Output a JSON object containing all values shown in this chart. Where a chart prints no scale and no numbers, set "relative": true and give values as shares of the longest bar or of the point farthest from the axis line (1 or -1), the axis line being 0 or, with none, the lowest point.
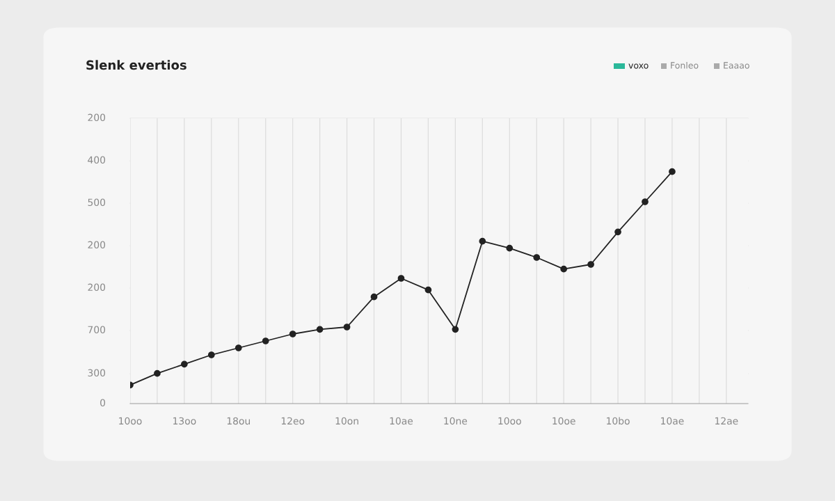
{
  "chart_data": {
    "type": "line",
    "title": "Slenk evertios",
    "relative": true,
    "annotations": [
      "voxo",
      "Fonleo",
      "Eaaao",
      "200",
      "400",
      "500",
      "200",
      "200",
      "700",
      "300",
      "0"
    ],
    "categories": [
      "10oo",
      null,
      "13oo",
      null,
      "18ou",
      null,
      "12eo",
      null,
      "10on",
      null,
      "10ae",
      null,
      "10ne",
      null,
      "10oo",
      null,
      "10oe",
      null,
      "10bo",
      null,
      "10ae",
      null,
      "12ae"
    ],
    "series": [
      {
        "color": "#222222",
        "values": [
          0.08,
          0.13,
          0.17,
          0.21,
          0.24,
          0.27,
          0.3,
          0.32,
          0.33,
          0.46,
          0.54,
          0.49,
          0.32,
          0.7,
          0.67,
          0.63,
          0.58,
          0.6,
          0.74,
          0.87,
          1.0,
          null,
          null
        ]
      }
    ],
    "grid": "x",
    "marker": "circle",
    "line_style": "solid"
  }
}
